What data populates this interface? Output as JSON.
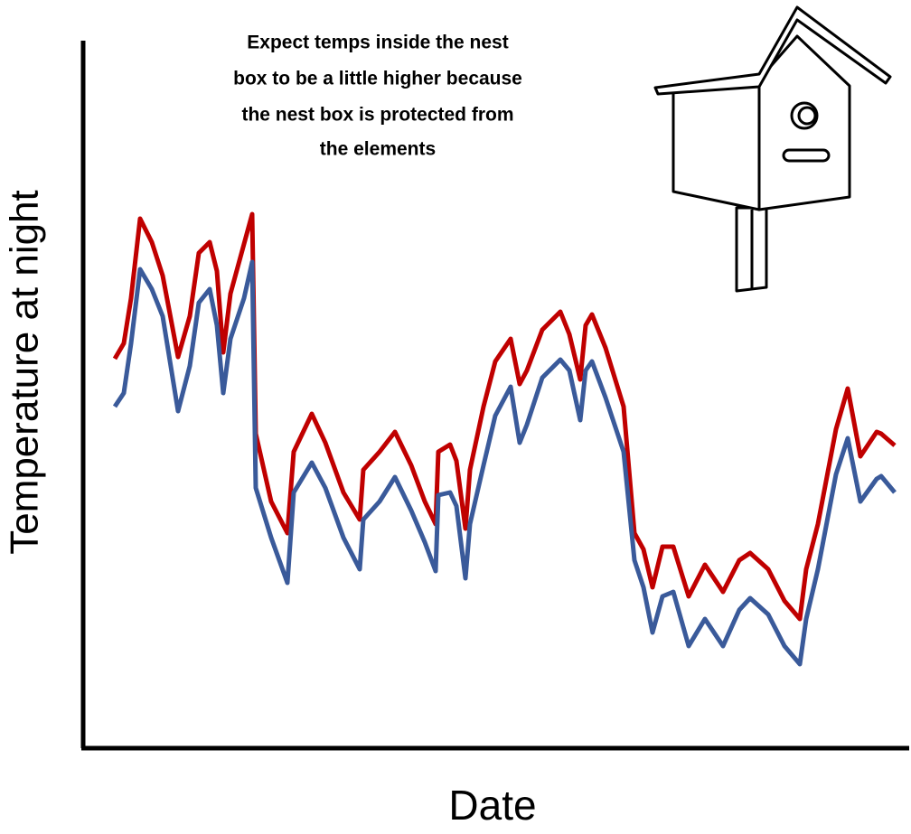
{
  "chart_data": {
    "type": "line",
    "y_label": "Temperature at night",
    "x_label": "Date",
    "annotation": [
      "Expect temps inside the nest",
      "box to be a little higher because",
      "the nest box is protected from",
      "the elements"
    ],
    "xlim": [
      0,
      913
    ],
    "ylim": [
      0,
      783
    ],
    "x": [
      35,
      45,
      53,
      63,
      76,
      88,
      105,
      118,
      128,
      140,
      148,
      155,
      163,
      178,
      187,
      191,
      208,
      226,
      233,
      253,
      268,
      288,
      306,
      310,
      328,
      345,
      363,
      378,
      390,
      393,
      406,
      413,
      423,
      428,
      443,
      456,
      473,
      483,
      491,
      508,
      528,
      538,
      550,
      556,
      563,
      578,
      598,
      610,
      620,
      630,
      641,
      653,
      670,
      688,
      708,
      726,
      738,
      758,
      776,
      793,
      800,
      813,
      833,
      846,
      860,
      878,
      883,
      898
    ],
    "series": [
      {
        "color": "#c00000",
        "values": [
          431,
          448,
          498,
          586,
          560,
          523,
          433,
          478,
          548,
          560,
          528,
          438,
          503,
          558,
          591,
          348,
          273,
          238,
          328,
          370,
          338,
          283,
          253,
          308,
          328,
          350,
          313,
          273,
          248,
          328,
          336,
          318,
          243,
          308,
          378,
          428,
          453,
          403,
          418,
          463,
          483,
          458,
          408,
          468,
          480,
          443,
          378,
          238,
          220,
          178,
          223,
          223,
          168,
          203,
          173,
          208,
          216,
          198,
          163,
          143,
          198,
          248,
          353,
          398,
          323,
          350,
          348,
          335
        ]
      },
      {
        "color": "#3a5a9a",
        "values": [
          378,
          393,
          448,
          530,
          508,
          478,
          373,
          423,
          493,
          508,
          468,
          393,
          453,
          498,
          538,
          288,
          233,
          183,
          283,
          316,
          288,
          233,
          198,
          253,
          273,
          300,
          263,
          228,
          196,
          280,
          283,
          268,
          188,
          248,
          313,
          368,
          400,
          338,
          358,
          410,
          430,
          418,
          363,
          418,
          428,
          388,
          328,
          208,
          178,
          128,
          168,
          173,
          113,
          143,
          113,
          153,
          166,
          148,
          113,
          93,
          143,
          198,
          303,
          343,
          273,
          298,
          301,
          283
        ]
      }
    ]
  }
}
